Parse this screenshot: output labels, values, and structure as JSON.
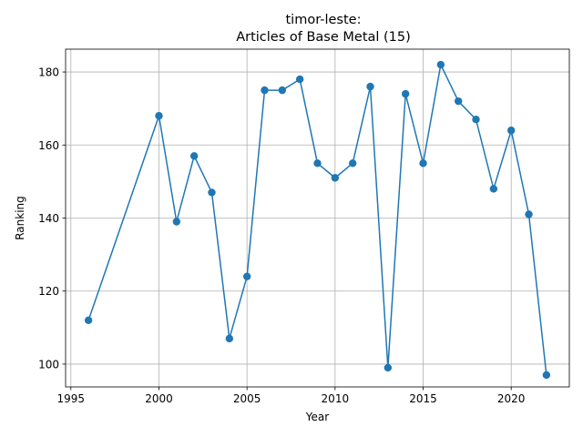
{
  "chart_data": {
    "type": "line",
    "title_line1": "timor-leste:",
    "title_line2": "Articles of Base Metal (15)",
    "xlabel": "Year",
    "ylabel": "Ranking",
    "xlim": [
      1994.7,
      2023.3
    ],
    "ylim": [
      93.75,
      186.25
    ],
    "xticks": [
      1995,
      2000,
      2005,
      2010,
      2015,
      2020
    ],
    "yticks": [
      100,
      120,
      140,
      160,
      180
    ],
    "grid": true,
    "color": "#1f77b4",
    "series": [
      {
        "x": [
          1996,
          2000,
          2001,
          2002,
          2003,
          2004,
          2005,
          2006,
          2007,
          2008,
          2009,
          2010,
          2011,
          2012,
          2013,
          2014,
          2015,
          2016,
          2017,
          2018,
          2019,
          2020,
          2021,
          2022
        ],
        "y": [
          112,
          168,
          139,
          157,
          147,
          107,
          124,
          175,
          175,
          178,
          155,
          151,
          155,
          176,
          99,
          174,
          155,
          182,
          172,
          167,
          148,
          164,
          141,
          97
        ]
      }
    ]
  }
}
